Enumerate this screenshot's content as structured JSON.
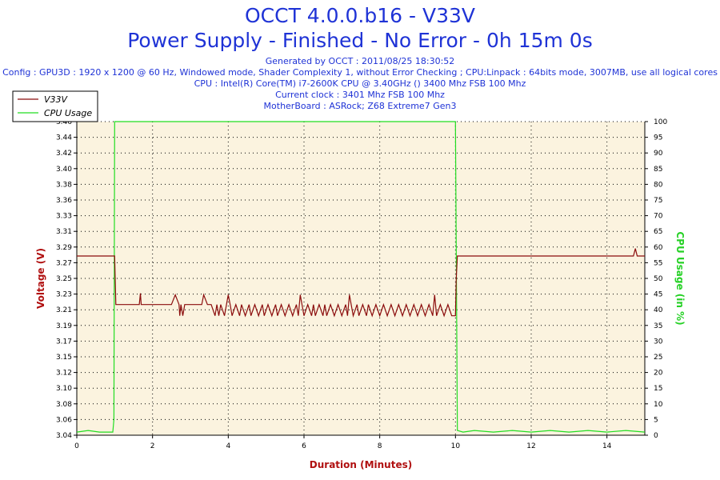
{
  "header": {
    "title": "OCCT 4.0.0.b16 - V33V",
    "subtitle": "Power Supply - Finished - No Error - 0h 15m 0s",
    "generated": "Generated by OCCT : 2011/08/25 18:30:52",
    "config": "Config : GPU3D : 1920 x 1200 @ 60 Hz, Windowed mode, Shader Complexity 1, without Error Checking ; CPU:Linpack : 64bits mode, 3007MB, use all logical cores",
    "cpu": "CPU : Intel(R) Core(TM) i7-2600K CPU @ 3.40GHz () 3400 Mhz FSB 100 Mhz",
    "clock": "Current clock : 3401 Mhz FSB 100 Mhz",
    "motherboard": "MotherBoard : ASRock; Z68 Extreme7 Gen3"
  },
  "colors": {
    "title": "#1f33d6",
    "voltage": "#8b0c0c",
    "cpu": "#22dd22",
    "plot_bg": "#fbf3df",
    "grid": "#000000"
  },
  "chart_data": {
    "type": "line",
    "title": "OCCT 4.0.0.b16 - V33V",
    "xlabel": "Duration (Minutes)",
    "ylabel_left": "Voltage (V)",
    "ylabel_right": "CPU Usage (in %)",
    "xlim": [
      0,
      15
    ],
    "ylim_left": [
      3.04,
      3.46
    ],
    "ylim_right": [
      0,
      100
    ],
    "x_ticks": [
      "0",
      "2",
      "4",
      "6",
      "8",
      "10",
      "12",
      "14"
    ],
    "y_ticks_left": [
      "3.04",
      "3.06",
      "3.08",
      "3.10",
      "3.12",
      "3.15",
      "3.17",
      "3.19",
      "3.21",
      "3.23",
      "3.25",
      "3.27",
      "3.29",
      "3.31",
      "3.33",
      "3.36",
      "3.38",
      "3.40",
      "3.42",
      "3.44",
      "3.46"
    ],
    "y_ticks_right": [
      "0",
      "5",
      "10",
      "15",
      "20",
      "25",
      "30",
      "35",
      "40",
      "45",
      "50",
      "55",
      "60",
      "65",
      "70",
      "75",
      "80",
      "85",
      "90",
      "95",
      "100"
    ],
    "grid": true,
    "legend_position": "top-left",
    "series": [
      {
        "name": "V33V",
        "axis": "left",
        "x": [
          0,
          1.0,
          1.03,
          1.05,
          1.65,
          1.68,
          1.7,
          1.73,
          2.5,
          2.6,
          2.7,
          2.72,
          2.75,
          2.8,
          2.85,
          3.3,
          3.35,
          3.45,
          3.55,
          3.65,
          3.7,
          3.75,
          3.8,
          3.9,
          4.0,
          4.05,
          4.1,
          4.2,
          4.3,
          4.35,
          4.45,
          4.55,
          4.6,
          4.7,
          4.8,
          4.9,
          4.95,
          5.05,
          5.15,
          5.25,
          5.3,
          5.4,
          5.5,
          5.6,
          5.7,
          5.8,
          5.85,
          5.9,
          6.0,
          6.1,
          6.2,
          6.25,
          6.3,
          6.4,
          6.5,
          6.55,
          6.6,
          6.7,
          6.8,
          6.9,
          7.0,
          7.1,
          7.15,
          7.2,
          7.3,
          7.4,
          7.45,
          7.55,
          7.65,
          7.7,
          7.8,
          7.9,
          8.0,
          8.1,
          8.2,
          8.3,
          8.4,
          8.5,
          8.6,
          8.7,
          8.8,
          8.9,
          9.0,
          9.1,
          9.2,
          9.3,
          9.4,
          9.45,
          9.5,
          9.6,
          9.7,
          9.8,
          9.9,
          10.0,
          10.02,
          10.05,
          10.1,
          14.7,
          14.75,
          14.8,
          15.0
        ],
        "values": [
          3.28,
          3.28,
          3.215,
          3.215,
          3.215,
          3.23,
          3.215,
          3.215,
          3.215,
          3.228,
          3.215,
          3.2,
          3.215,
          3.2,
          3.215,
          3.215,
          3.228,
          3.215,
          3.215,
          3.2,
          3.215,
          3.2,
          3.215,
          3.2,
          3.228,
          3.215,
          3.2,
          3.215,
          3.2,
          3.215,
          3.2,
          3.215,
          3.2,
          3.215,
          3.2,
          3.215,
          3.2,
          3.215,
          3.2,
          3.215,
          3.2,
          3.215,
          3.2,
          3.215,
          3.2,
          3.215,
          3.2,
          3.228,
          3.2,
          3.215,
          3.2,
          3.215,
          3.2,
          3.215,
          3.2,
          3.215,
          3.2,
          3.215,
          3.2,
          3.215,
          3.2,
          3.215,
          3.2,
          3.228,
          3.2,
          3.215,
          3.2,
          3.215,
          3.2,
          3.215,
          3.2,
          3.215,
          3.2,
          3.215,
          3.2,
          3.215,
          3.2,
          3.215,
          3.2,
          3.215,
          3.2,
          3.215,
          3.2,
          3.215,
          3.2,
          3.215,
          3.2,
          3.228,
          3.2,
          3.215,
          3.2,
          3.215,
          3.2,
          3.2,
          3.25,
          3.28,
          3.28,
          3.28,
          3.29,
          3.28,
          3.28
        ]
      },
      {
        "name": "CPU Usage",
        "axis": "right",
        "x": [
          0,
          0.3,
          0.6,
          0.95,
          0.98,
          1.0,
          1.02,
          1.1,
          2,
          3,
          4,
          5,
          6,
          7,
          8,
          9,
          9.8,
          9.9,
          9.95,
          10.0,
          10.05,
          10.2,
          10.5,
          11,
          11.5,
          12,
          12.5,
          13,
          13.5,
          14,
          14.5,
          15.0
        ],
        "values": [
          1,
          1.5,
          1,
          1,
          5,
          100,
          100,
          100,
          100,
          100,
          100,
          100,
          100,
          100,
          100,
          100,
          100,
          100,
          100,
          100,
          1.5,
          1,
          1.5,
          1,
          1.5,
          1,
          1.5,
          1,
          1.5,
          1,
          1.5,
          1
        ]
      }
    ]
  }
}
